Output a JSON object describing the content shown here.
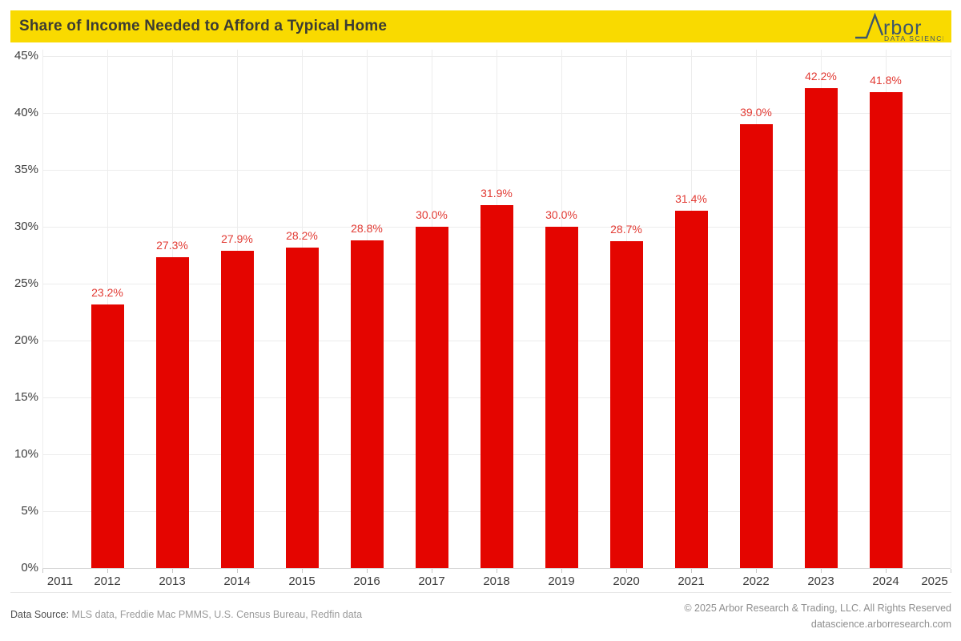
{
  "header": {
    "title": "Share of Income Needed to Afford a Typical Home",
    "logo": {
      "brand": "Arbor",
      "brand_rest": "rbor",
      "subtitle": "DATA SCIENCE"
    }
  },
  "colors": {
    "banner": "#f9da00",
    "bar": "#e40500",
    "bar_label": "#e23a33",
    "logo": "#3d566b"
  },
  "chart_data": {
    "type": "bar",
    "title": "Share of Income Needed to Afford a Typical Home",
    "xlabel": "",
    "ylabel": "",
    "ylim": [
      0,
      45
    ],
    "grid": true,
    "ytick_labels": [
      "0%",
      "5%",
      "10%",
      "15%",
      "20%",
      "25%",
      "30%",
      "35%",
      "40%",
      "45%"
    ],
    "x_axis_labels": [
      "2011",
      "2012",
      "2013",
      "2014",
      "2015",
      "2016",
      "2017",
      "2018",
      "2019",
      "2020",
      "2021",
      "2022",
      "2023",
      "2024",
      "2025"
    ],
    "categories": [
      "2012",
      "2013",
      "2014",
      "2015",
      "2016",
      "2017",
      "2018",
      "2019",
      "2020",
      "2021",
      "2022",
      "2023",
      "2024"
    ],
    "values": [
      23.2,
      27.3,
      27.9,
      28.2,
      28.8,
      30.0,
      31.9,
      30.0,
      28.7,
      31.4,
      39.0,
      42.2,
      41.8
    ],
    "bar_labels": [
      "23.2%",
      "27.3%",
      "27.9%",
      "28.2%",
      "28.8%",
      "30.0%",
      "31.9%",
      "30.0%",
      "28.7%",
      "31.4%",
      "39.0%",
      "42.2%",
      "41.8%"
    ]
  },
  "footer": {
    "source_prefix": "Data Source:",
    "source_text": " MLS data, Freddie Mac PMMS, U.S. Census Bureau, Redfin data",
    "copyright": "© 2025 Arbor Research & Trading, LLC. All Rights Reserved",
    "website": "datascience.arborresearch.com"
  }
}
